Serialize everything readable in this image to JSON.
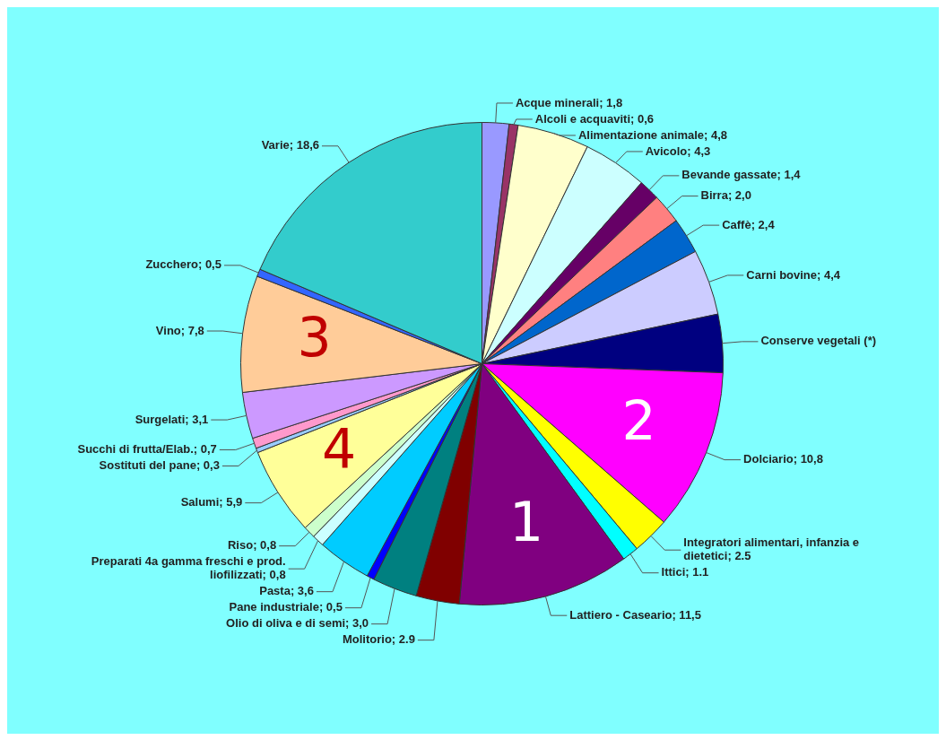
{
  "chart_data": {
    "type": "pie",
    "categories": [
      "Acque minerali",
      "Alcoli e acquaviti",
      "Alimentazione animale",
      "Avicolo",
      "Bevande gassate",
      "Birra",
      "Caffè",
      "Carni bovine",
      "Conserve vegetali (*)",
      "Dolciario",
      "Integratori alimentari, infanzia e dietetici",
      "Ittici",
      "Lattiero - Caseario",
      "Molitorio",
      "Olio di oliva e di semi",
      "Pane industriale",
      "Pasta",
      "Preparati 4a gamma freschi e prod. liofilizzati",
      "Riso",
      "Salumi",
      "Sostituti del pane",
      "Succhi di frutta/Elab.",
      "Surgelati",
      "Vino",
      "Zucchero",
      "Varie"
    ],
    "values": [
      1.8,
      0.6,
      4.8,
      4.3,
      1.4,
      2.0,
      2.4,
      4.4,
      3.9,
      10.8,
      2.5,
      1.1,
      11.5,
      2.9,
      3.0,
      0.5,
      3.6,
      0.8,
      0.8,
      5.9,
      0.3,
      0.7,
      3.1,
      7.8,
      0.5,
      18.6
    ],
    "value_labels": [
      "1,8",
      "0,6",
      "4,8",
      "4,3",
      "1,4",
      "2,0",
      "2,4",
      "4,4",
      null,
      "10,8",
      "2.5",
      "1.1",
      "11,5",
      "2.9",
      "3,0",
      "0,5",
      "3,6",
      "0,8",
      "0,8",
      "5,9",
      "0,3",
      "0,7",
      "3,1",
      "7,8",
      "0,5",
      "18,6"
    ],
    "colors": [
      "#9999ff",
      "#993366",
      "#ffffcc",
      "#ccffff",
      "#660066",
      "#ff8080",
      "#0066cc",
      "#ccccff",
      "#000080",
      "#ff00ff",
      "#ffff00",
      "#00ffff",
      "#800080",
      "#800000",
      "#008080",
      "#0000ff",
      "#00ccff",
      "#ccffff",
      "#ccffcc",
      "#ffff99",
      "#99ccff",
      "#ff99cc",
      "#cc99ff",
      "#ffcc99",
      "#3366ff",
      "#33cccc"
    ],
    "annotations": [
      {
        "text": "1",
        "x": "Lattiero - Caseario"
      },
      {
        "text": "2",
        "x": "Dolciario"
      },
      {
        "text": "3",
        "x": "Vino"
      },
      {
        "text": "4",
        "x": "Salumi"
      }
    ],
    "legend": false
  }
}
